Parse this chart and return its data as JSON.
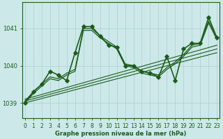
{
  "title": "Graphe pression niveau de la mer (hPa)",
  "background_color": "#cce8e8",
  "line_color": "#1a5c1a",
  "grid_color": "#aacfcf",
  "x_labels": [
    "0",
    "1",
    "2",
    "3",
    "4",
    "5",
    "6",
    "7",
    "8",
    "9",
    "10",
    "11",
    "12",
    "13",
    "14",
    "15",
    "16",
    "17",
    "18",
    "19",
    "20",
    "21",
    "22",
    "23"
  ],
  "yticks": [
    1039,
    1040,
    1041
  ],
  "ylim": [
    1038.6,
    1041.7
  ],
  "xlim": [
    -0.3,
    23.3
  ],
  "trend_lines": [
    {
      "x": [
        0,
        23
      ],
      "y": [
        1039.0,
        1040.35
      ]
    },
    {
      "x": [
        0,
        23
      ],
      "y": [
        1039.05,
        1040.45
      ]
    },
    {
      "x": [
        0,
        23
      ],
      "y": [
        1039.1,
        1040.55
      ]
    }
  ],
  "spiky_series": {
    "x": [
      0,
      1,
      2,
      3,
      4,
      5,
      6,
      7,
      8,
      9,
      10,
      11,
      12,
      13,
      14,
      15,
      16,
      17,
      18,
      19,
      20,
      21,
      22,
      23
    ],
    "y": [
      1039.0,
      1039.3,
      1039.5,
      1039.85,
      1039.75,
      1039.6,
      1040.35,
      1041.05,
      1041.05,
      1040.8,
      1040.55,
      1040.5,
      1040.0,
      1040.0,
      1039.85,
      1039.8,
      1039.7,
      1040.25,
      1039.6,
      1040.45,
      1040.6,
      1040.6,
      1041.3,
      1040.75
    ],
    "marker": "D",
    "markersize": 2.8,
    "linewidth": 1.2
  },
  "smooth_series_1": {
    "x": [
      0,
      1,
      2,
      3,
      4,
      5,
      6,
      7,
      8,
      9,
      10,
      11,
      12,
      13,
      14,
      15,
      16,
      17,
      18,
      19,
      20,
      21,
      22,
      23
    ],
    "y": [
      1039.0,
      1039.25,
      1039.45,
      1039.65,
      1039.6,
      1039.75,
      1039.85,
      1040.95,
      1040.95,
      1040.75,
      1040.6,
      1040.45,
      1040.0,
      1039.95,
      1039.8,
      1039.75,
      1039.7,
      1039.9,
      1040.05,
      1040.25,
      1040.5,
      1040.55,
      1041.15,
      1040.7
    ],
    "linewidth": 0.9
  },
  "smooth_series_2": {
    "x": [
      0,
      1,
      2,
      3,
      4,
      5,
      6,
      7,
      8,
      9,
      10,
      11,
      12,
      13,
      14,
      15,
      16,
      17,
      18,
      19,
      20,
      21,
      22,
      23
    ],
    "y": [
      1039.05,
      1039.3,
      1039.5,
      1039.7,
      1039.65,
      1039.8,
      1039.9,
      1041.0,
      1041.0,
      1040.8,
      1040.65,
      1040.5,
      1040.05,
      1040.0,
      1039.85,
      1039.8,
      1039.75,
      1039.95,
      1040.1,
      1040.3,
      1040.55,
      1040.6,
      1041.2,
      1040.75
    ],
    "linewidth": 0.9
  }
}
